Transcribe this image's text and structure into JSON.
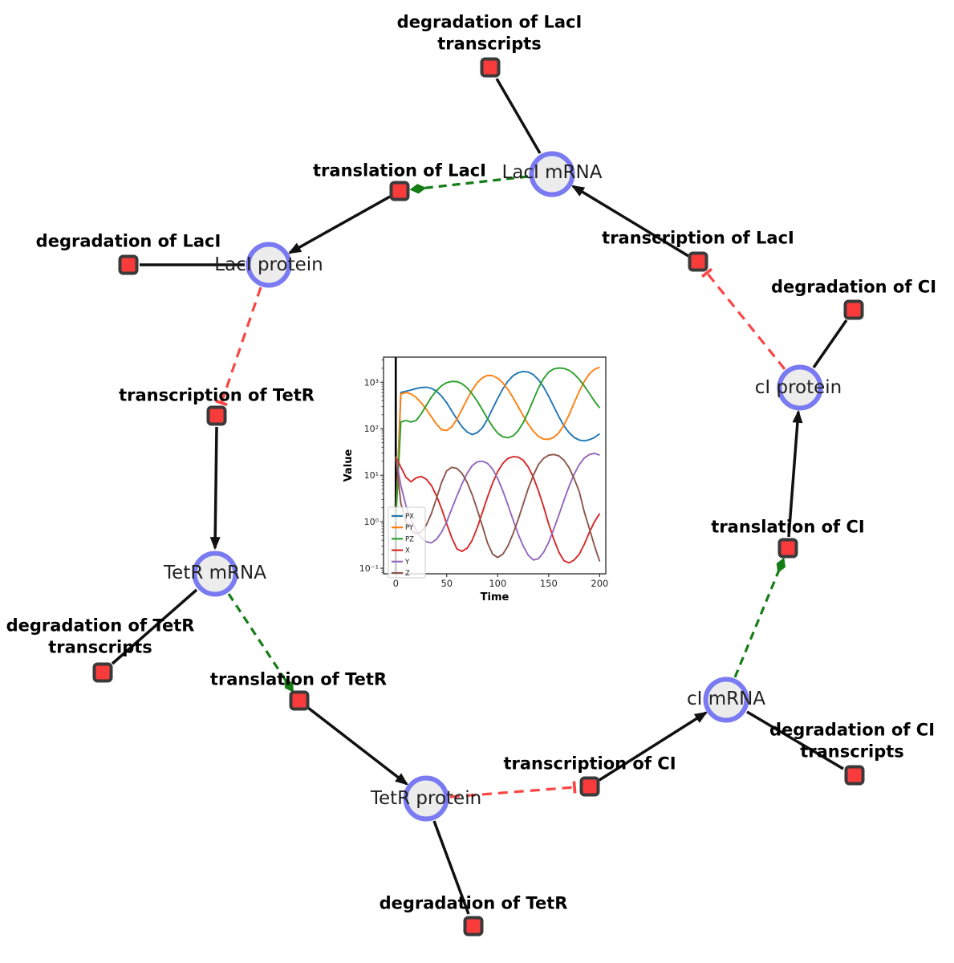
{
  "diagram": {
    "species": [
      {
        "id": "laci-mrna",
        "label": "LacI mRNA"
      },
      {
        "id": "laci-protein",
        "label": "LacI protein"
      },
      {
        "id": "tetr-mrna",
        "label": "TetR mRNA"
      },
      {
        "id": "tetr-protein",
        "label": "TetR protein"
      },
      {
        "id": "ci-mrna",
        "label": "cI mRNA"
      },
      {
        "id": "ci-protein",
        "label": "cI protein"
      }
    ],
    "reactions": [
      {
        "id": "deg-laci-transcripts",
        "label": "degradation of LacI transcripts"
      },
      {
        "id": "translation-laci",
        "label": "translation of LacI"
      },
      {
        "id": "deg-laci",
        "label": "degradation of LacI"
      },
      {
        "id": "transcription-laci",
        "label": "transcription of LacI"
      },
      {
        "id": "deg-ci",
        "label": "degradation of CI"
      },
      {
        "id": "transcription-tetr",
        "label": "transcription of TetR"
      },
      {
        "id": "deg-tetr-transcripts",
        "label": "degradation of TetR transcripts"
      },
      {
        "id": "translation-tetr",
        "label": "translation of TetR"
      },
      {
        "id": "deg-tetr",
        "label": "degradation of TetR"
      },
      {
        "id": "transcription-ci",
        "label": "transcription of CI"
      },
      {
        "id": "deg-ci-transcripts",
        "label": "degradation of CI transcripts"
      },
      {
        "id": "translation-ci",
        "label": "translation of CI"
      }
    ],
    "colors": {
      "species_border": "#7a7af2",
      "species_fill": "#ececec",
      "reaction_fill": "#fa3b3b",
      "reaction_border": "#3a3a3a",
      "production_edge": "#111111",
      "inhibition_edge": "#fa4545",
      "modulation_edge": "#157d15"
    }
  },
  "chart_data": {
    "type": "line",
    "title": "",
    "xlabel": "Time",
    "ylabel": "Value",
    "xscale": "linear",
    "yscale": "log",
    "xlim": [
      -12,
      206
    ],
    "ylim": [
      0.076,
      3467
    ],
    "ylog_lim": [
      -1.12,
      3.54
    ],
    "xticks": [
      0,
      50,
      100,
      150,
      200
    ],
    "yticks_exp": [
      -1,
      0,
      1,
      2,
      3
    ],
    "ytick_labels": [
      "10⁻¹",
      "10⁰",
      "10¹",
      "10²",
      "10³"
    ],
    "vline_x": 0,
    "grid": false,
    "legend_position": "lower left",
    "t": [
      0,
      5,
      10,
      15,
      20,
      25,
      30,
      35,
      40,
      45,
      50,
      55,
      60,
      65,
      70,
      75,
      80,
      85,
      90,
      95,
      100,
      105,
      110,
      115,
      120,
      125,
      130,
      135,
      140,
      145,
      150,
      155,
      160,
      165,
      170,
      175,
      180,
      185,
      190,
      195,
      200
    ],
    "series": [
      {
        "name": "PX",
        "color": "#1f77b4",
        "values": [
          1,
          600,
          640,
          680,
          730,
          770,
          780,
          740,
          640,
          500,
          360,
          240,
          160,
          110,
          85,
          75,
          82,
          105,
          160,
          270,
          450,
          720,
          1050,
          1380,
          1600,
          1700,
          1650,
          1450,
          1130,
          790,
          500,
          300,
          180,
          115,
          82,
          65,
          57,
          55,
          58,
          65,
          78
        ]
      },
      {
        "name": "PY",
        "color": "#ff7f0e",
        "values": [
          1,
          560,
          600,
          560,
          470,
          360,
          260,
          180,
          125,
          95,
          92,
          110,
          160,
          260,
          430,
          680,
          980,
          1250,
          1400,
          1380,
          1220,
          970,
          700,
          470,
          300,
          190,
          125,
          88,
          68,
          60,
          59,
          65,
          82,
          120,
          200,
          360,
          640,
          1050,
          1520,
          1900,
          2100
        ]
      },
      {
        "name": "PZ",
        "color": "#2ca02c",
        "values": [
          1,
          140,
          150,
          140,
          150,
          210,
          320,
          480,
          660,
          840,
          980,
          1040,
          1030,
          930,
          760,
          560,
          390,
          255,
          165,
          110,
          80,
          67,
          64,
          70,
          90,
          135,
          230,
          420,
          750,
          1200,
          1650,
          1930,
          2020,
          1980,
          1800,
          1500,
          1150,
          830,
          570,
          390,
          280
        ]
      },
      {
        "name": "X",
        "color": "#d62728",
        "values": [
          25,
          15,
          9,
          7.2,
          8.8,
          9.4,
          8.2,
          6,
          3.6,
          1.9,
          0.9,
          0.45,
          0.26,
          0.23,
          0.27,
          0.4,
          0.75,
          1.6,
          3.4,
          6.8,
          12,
          18,
          23,
          25,
          24.5,
          21,
          15,
          9,
          4.6,
          2.1,
          0.9,
          0.42,
          0.22,
          0.145,
          0.13,
          0.15,
          0.2,
          0.33,
          0.6,
          1,
          1.5
        ]
      },
      {
        "name": "Y",
        "color": "#9467bd",
        "values": [
          25,
          6,
          2.2,
          1.1,
          0.65,
          0.45,
          0.37,
          0.35,
          0.42,
          0.6,
          1,
          1.9,
          3.6,
          6.5,
          11,
          16,
          19.5,
          20,
          18,
          13.5,
          8.5,
          4.6,
          2.3,
          1.1,
          0.55,
          0.3,
          0.19,
          0.15,
          0.16,
          0.22,
          0.36,
          0.7,
          1.4,
          2.9,
          5.8,
          10.5,
          17,
          23.5,
          28,
          29.5,
          27
        ]
      },
      {
        "name": "Z",
        "color": "#8c564b",
        "values": [
          25,
          2.5,
          1,
          0.65,
          0.55,
          0.6,
          0.85,
          1.5,
          3.2,
          7,
          12.5,
          14.8,
          14,
          11,
          7,
          3.8,
          1.8,
          0.8,
          0.35,
          0.2,
          0.17,
          0.2,
          0.3,
          0.55,
          1.1,
          2.4,
          5.2,
          10,
          17,
          23,
          27,
          28,
          26,
          21,
          14.5,
          8.5,
          4.4,
          1.6,
          0.7,
          0.3,
          0.14
        ]
      }
    ]
  }
}
